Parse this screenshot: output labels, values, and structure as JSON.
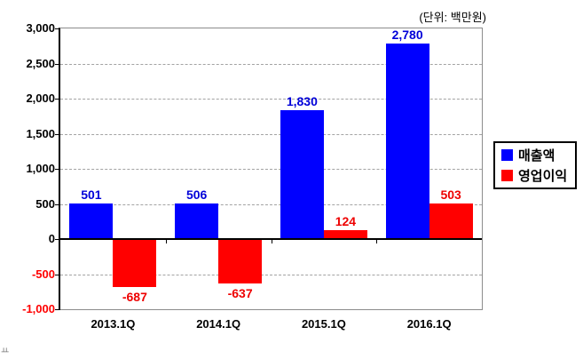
{
  "unit_label": "(단위: 백만원)",
  "footer_artifact": "ㅛ",
  "chart_data": {
    "type": "bar",
    "title": "",
    "xlabel": "",
    "ylabel": "",
    "unit": "백만원",
    "categories": [
      "2013.1Q",
      "2014.1Q",
      "2015.1Q",
      "2016.1Q"
    ],
    "series": [
      {
        "name": "매출액",
        "color": "#0000ff",
        "label_color": "#0000d9",
        "values": [
          501,
          506,
          1830,
          2780
        ],
        "labels": [
          "501",
          "506",
          "1,830",
          "2,780"
        ]
      },
      {
        "name": "영업이익",
        "color": "#ff0000",
        "label_color": "#ee0000",
        "values": [
          -687,
          -637,
          124,
          503
        ],
        "labels": [
          "-687",
          "-637",
          "124",
          "503"
        ]
      }
    ],
    "ylim": [
      -1000,
      3000
    ],
    "ytick_step": 500,
    "yticks": [
      3000,
      2500,
      2000,
      1500,
      1000,
      500,
      0,
      -500,
      -1000
    ],
    "ytick_labels": [
      "3,000",
      "2,500",
      "2,000",
      "1,500",
      "1,000",
      "500",
      "0",
      "-500",
      "-1,000"
    ],
    "negative_tick_color": "#ff0000",
    "grid": "horizontal dashed",
    "legend_position": "right"
  }
}
